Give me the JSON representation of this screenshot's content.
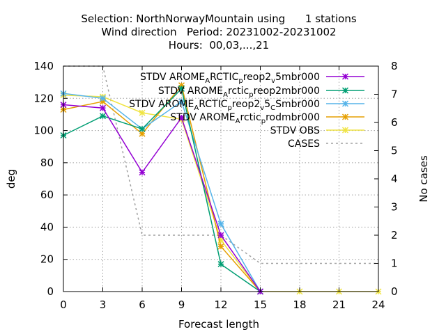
{
  "chart_data": {
    "type": "line",
    "title_lines": [
      "Selection: NorthNorwayMountain using      1 stations",
      "Wind direction   Period: 20231002-20231002",
      "Hours:  00,03,...,21"
    ],
    "xlabel": "Forecast length",
    "ylabel": "deg",
    "y2label": "No cases",
    "x": [
      0,
      3,
      6,
      9,
      12,
      15,
      18,
      21,
      24
    ],
    "xlim": [
      0,
      24
    ],
    "ylim": [
      0,
      140
    ],
    "y2lim": [
      0,
      8
    ],
    "xticks": [
      "0",
      "3",
      "6",
      "9",
      "12",
      "15",
      "18",
      "21",
      "24"
    ],
    "yticks": [
      "0",
      "20",
      "40",
      "60",
      "80",
      "100",
      "120",
      "140"
    ],
    "y2ticks": [
      "0",
      "1",
      "2",
      "3",
      "4",
      "5",
      "6",
      "7",
      "8"
    ],
    "grid": true,
    "legend_position": "top-right",
    "series": [
      {
        "name": "STDV AROME_ARCTIC_preop2_v5mbr000",
        "name_parts": [
          [
            "STDV AROME",
            ""
          ],
          [
            "A",
            "sub"
          ],
          [
            "RCTIC",
            ""
          ],
          [
            "p",
            "sub"
          ],
          [
            "reop2",
            ""
          ],
          [
            "v",
            "sub"
          ],
          [
            "5mbr000",
            ""
          ]
        ],
        "color": "#9400d3",
        "axis": "y1",
        "marker": true,
        "values": [
          116,
          114,
          74,
          108,
          35,
          0,
          null,
          null,
          null
        ]
      },
      {
        "name": "STDV AROME_Arctic_preop2mbr000",
        "name_parts": [
          [
            "STDV AROME",
            ""
          ],
          [
            "A",
            "sub"
          ],
          [
            "rctic",
            ""
          ],
          [
            "p",
            "sub"
          ],
          [
            "reop2mbr000",
            ""
          ]
        ],
        "color": "#009e73",
        "axis": "y1",
        "marker": true,
        "values": [
          97,
          109,
          101,
          126,
          17,
          0,
          null,
          null,
          null
        ]
      },
      {
        "name": "STDV AROME_ARCTIC_preop2_v5_CSmbr000",
        "name_parts": [
          [
            "STDV AROME",
            ""
          ],
          [
            "A",
            "sub"
          ],
          [
            "RCTIC",
            ""
          ],
          [
            "p",
            "sub"
          ],
          [
            "reop2",
            ""
          ],
          [
            "v",
            "sub"
          ],
          [
            "5",
            ""
          ],
          [
            "C",
            "sub"
          ],
          [
            "Smbr000",
            ""
          ]
        ],
        "color": "#56b4e9",
        "axis": "y1",
        "marker": true,
        "values": [
          123,
          120,
          101,
          118,
          42,
          0,
          null,
          null,
          null
        ]
      },
      {
        "name": "STDV AROME_Arctic_prodmbr000",
        "name_parts": [
          [
            "STDV AROME",
            ""
          ],
          [
            "A",
            "sub"
          ],
          [
            "rctic",
            ""
          ],
          [
            "p",
            "sub"
          ],
          [
            "rodmbr000",
            ""
          ]
        ],
        "color": "#e69f00",
        "axis": "y1",
        "marker": true,
        "values": [
          113,
          118,
          98,
          128,
          28,
          0,
          null,
          null,
          null
        ]
      },
      {
        "name": "STDV OBS",
        "name_parts": [
          [
            "STDV OBS",
            ""
          ]
        ],
        "color": "#f0e442",
        "axis": "y1",
        "marker": true,
        "values": [
          122,
          121,
          111,
          107,
          32,
          0,
          0,
          0,
          0
        ]
      },
      {
        "name": "CASES",
        "name_parts": [
          [
            "CASES",
            ""
          ]
        ],
        "color": "#a0a0a0",
        "axis": "y2",
        "marker": false,
        "dashed": true,
        "values": [
          8,
          8,
          2,
          2,
          2,
          1,
          1,
          1,
          1
        ]
      }
    ]
  }
}
